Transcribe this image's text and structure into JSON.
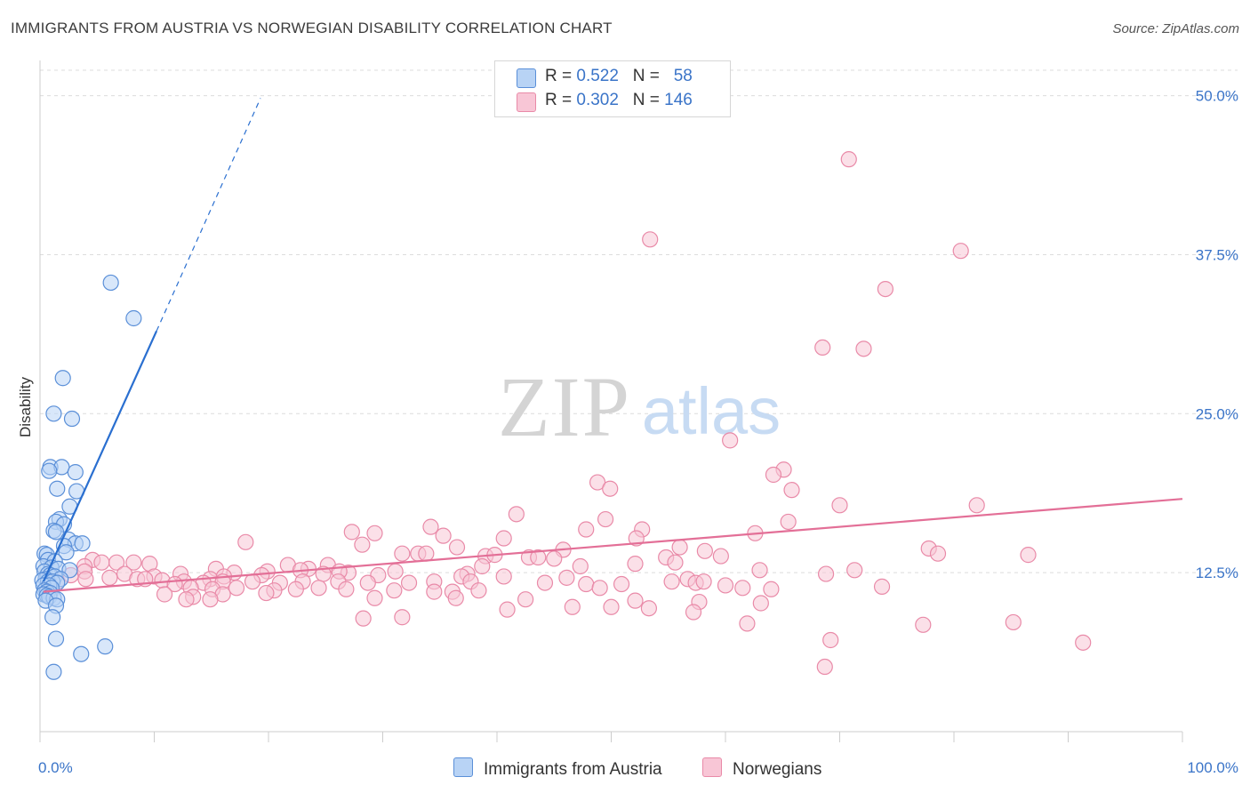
{
  "title": "IMMIGRANTS FROM AUSTRIA VS NORWEGIAN DISABILITY CORRELATION CHART",
  "source": "Source: ZipAtlas.com",
  "watermark": {
    "zip": "ZIP",
    "atlas": "atlas"
  },
  "colors": {
    "blue_fill": "#b8d3f5",
    "blue_stroke": "#5a8fd8",
    "blue_line": "#2a6fd0",
    "pink_fill": "#f8c6d6",
    "pink_stroke": "#e98aa8",
    "pink_line": "#e36f97",
    "tick_label": "#3a74c8",
    "grid": "#dcdcdc"
  },
  "legend_top": {
    "rows": [
      {
        "r_label": "R = ",
        "r_value": "0.522",
        "n_label": "N = ",
        "n_value": "58"
      },
      {
        "r_label": "R = ",
        "r_value": "0.302",
        "n_label": "N = ",
        "n_value": "146"
      }
    ]
  },
  "chart_data": {
    "type": "scatter",
    "title": "IMMIGRANTS FROM AUSTRIA VS NORWEGIAN DISABILITY CORRELATION CHART",
    "xlabel": "",
    "ylabel": "Disability",
    "xlim": [
      0,
      100
    ],
    "ylim": [
      0,
      52
    ],
    "x_tick_labels": [
      "0.0%",
      "100.0%"
    ],
    "y_ticks": [
      12.5,
      25.0,
      37.5,
      50.0
    ],
    "y_tick_labels": [
      "12.5%",
      "25.0%",
      "37.5%",
      "50.0%"
    ],
    "grid": "horizontal dashed",
    "legend_placement": "top-center",
    "series": [
      {
        "name": "Immigrants from Austria",
        "color": "#b8d3f5",
        "trend": {
          "x": [
            0.3,
            10.2
          ],
          "y": [
            11.8,
            31.5
          ],
          "dashed_extension_to": [
            19.3,
            49.8
          ]
        },
        "points": [
          [
            6.2,
            35.3
          ],
          [
            8.2,
            32.5
          ],
          [
            2.0,
            27.8
          ],
          [
            1.2,
            25.0
          ],
          [
            2.8,
            24.6
          ],
          [
            0.9,
            20.8
          ],
          [
            1.9,
            20.8
          ],
          [
            0.8,
            20.5
          ],
          [
            3.1,
            20.4
          ],
          [
            1.5,
            19.1
          ],
          [
            3.2,
            18.9
          ],
          [
            2.6,
            17.7
          ],
          [
            1.7,
            16.7
          ],
          [
            1.4,
            16.5
          ],
          [
            2.1,
            16.3
          ],
          [
            1.2,
            15.8
          ],
          [
            1.4,
            15.7
          ],
          [
            2.5,
            15.1
          ],
          [
            3.1,
            14.8
          ],
          [
            3.7,
            14.8
          ],
          [
            2.1,
            14.6
          ],
          [
            2.3,
            14.1
          ],
          [
            0.4,
            14.0
          ],
          [
            0.6,
            13.9
          ],
          [
            0.7,
            13.5
          ],
          [
            1.3,
            13.4
          ],
          [
            0.3,
            13.0
          ],
          [
            1.0,
            12.9
          ],
          [
            1.6,
            12.8
          ],
          [
            2.6,
            12.7
          ],
          [
            0.4,
            12.6
          ],
          [
            0.7,
            12.4
          ],
          [
            0.9,
            12.3
          ],
          [
            1.3,
            12.2
          ],
          [
            0.5,
            12.0
          ],
          [
            1.8,
            12.0
          ],
          [
            0.2,
            11.9
          ],
          [
            0.7,
            11.8
          ],
          [
            1.1,
            11.8
          ],
          [
            1.5,
            11.7
          ],
          [
            0.3,
            11.5
          ],
          [
            0.8,
            11.5
          ],
          [
            1.0,
            11.3
          ],
          [
            0.4,
            11.1
          ],
          [
            0.6,
            11.0
          ],
          [
            0.9,
            10.9
          ],
          [
            0.3,
            10.8
          ],
          [
            0.6,
            10.7
          ],
          [
            0.8,
            10.6
          ],
          [
            1.2,
            10.5
          ],
          [
            1.5,
            10.4
          ],
          [
            0.5,
            10.3
          ],
          [
            1.4,
            9.9
          ],
          [
            1.1,
            9.0
          ],
          [
            1.4,
            7.3
          ],
          [
            5.7,
            6.7
          ],
          [
            3.6,
            6.1
          ],
          [
            1.2,
            4.7
          ]
        ]
      },
      {
        "name": "Norwegians",
        "color": "#f8c6d6",
        "trend": {
          "x": [
            0.3,
            100
          ],
          "y": [
            11.0,
            18.3
          ]
        },
        "points": [
          [
            70.8,
            45.0
          ],
          [
            53.4,
            38.7
          ],
          [
            80.6,
            37.8
          ],
          [
            74.0,
            34.8
          ],
          [
            68.5,
            30.2
          ],
          [
            72.1,
            30.1
          ],
          [
            60.4,
            22.9
          ],
          [
            65.1,
            20.6
          ],
          [
            64.2,
            20.2
          ],
          [
            48.8,
            19.6
          ],
          [
            49.9,
            19.1
          ],
          [
            65.8,
            19.0
          ],
          [
            70.0,
            17.8
          ],
          [
            82.0,
            17.8
          ],
          [
            41.7,
            17.1
          ],
          [
            49.5,
            16.7
          ],
          [
            65.5,
            16.5
          ],
          [
            34.2,
            16.1
          ],
          [
            27.3,
            15.7
          ],
          [
            29.3,
            15.6
          ],
          [
            47.8,
            15.9
          ],
          [
            52.7,
            15.9
          ],
          [
            62.6,
            15.6
          ],
          [
            35.3,
            15.4
          ],
          [
            40.6,
            15.2
          ],
          [
            52.2,
            15.2
          ],
          [
            18.0,
            14.9
          ],
          [
            28.2,
            14.7
          ],
          [
            36.5,
            14.5
          ],
          [
            56.0,
            14.5
          ],
          [
            45.8,
            14.3
          ],
          [
            58.2,
            14.2
          ],
          [
            77.8,
            14.4
          ],
          [
            31.7,
            14.0
          ],
          [
            33.1,
            14.0
          ],
          [
            33.8,
            14.0
          ],
          [
            39.0,
            13.8
          ],
          [
            39.8,
            13.9
          ],
          [
            42.8,
            13.7
          ],
          [
            59.6,
            13.8
          ],
          [
            78.6,
            14.0
          ],
          [
            86.5,
            13.9
          ],
          [
            43.6,
            13.7
          ],
          [
            45.0,
            13.6
          ],
          [
            54.8,
            13.7
          ],
          [
            4.6,
            13.5
          ],
          [
            5.4,
            13.3
          ],
          [
            6.7,
            13.3
          ],
          [
            8.2,
            13.3
          ],
          [
            9.6,
            13.2
          ],
          [
            3.9,
            13.0
          ],
          [
            21.7,
            13.1
          ],
          [
            25.2,
            13.1
          ],
          [
            38.7,
            13.0
          ],
          [
            47.3,
            13.0
          ],
          [
            52.1,
            13.2
          ],
          [
            55.6,
            13.3
          ],
          [
            23.5,
            12.8
          ],
          [
            22.8,
            12.7
          ],
          [
            15.4,
            12.8
          ],
          [
            17.0,
            12.5
          ],
          [
            27.0,
            12.5
          ],
          [
            26.2,
            12.6
          ],
          [
            19.9,
            12.6
          ],
          [
            31.1,
            12.6
          ],
          [
            37.4,
            12.4
          ],
          [
            63.0,
            12.7
          ],
          [
            71.3,
            12.7
          ],
          [
            2.7,
            12.3
          ],
          [
            3.9,
            12.6
          ],
          [
            7.4,
            12.4
          ],
          [
            10.0,
            12.2
          ],
          [
            12.3,
            12.4
          ],
          [
            6.1,
            12.1
          ],
          [
            8.5,
            12.0
          ],
          [
            9.2,
            12.0
          ],
          [
            14.9,
            12.0
          ],
          [
            16.1,
            12.2
          ],
          [
            19.4,
            12.3
          ],
          [
            24.8,
            12.4
          ],
          [
            29.6,
            12.3
          ],
          [
            36.9,
            12.2
          ],
          [
            40.6,
            12.2
          ],
          [
            46.1,
            12.1
          ],
          [
            56.7,
            12.0
          ],
          [
            68.8,
            12.4
          ],
          [
            1.5,
            11.8
          ],
          [
            4.0,
            12.0
          ],
          [
            10.7,
            11.9
          ],
          [
            12.6,
            11.8
          ],
          [
            14.3,
            11.7
          ],
          [
            16.0,
            11.8
          ],
          [
            18.6,
            11.8
          ],
          [
            21.0,
            11.7
          ],
          [
            23.0,
            11.8
          ],
          [
            26.1,
            11.8
          ],
          [
            28.7,
            11.7
          ],
          [
            32.3,
            11.7
          ],
          [
            34.5,
            11.8
          ],
          [
            37.7,
            11.8
          ],
          [
            44.2,
            11.7
          ],
          [
            47.8,
            11.6
          ],
          [
            50.9,
            11.6
          ],
          [
            55.3,
            11.8
          ],
          [
            57.4,
            11.7
          ],
          [
            58.1,
            11.8
          ],
          [
            60.0,
            11.5
          ],
          [
            11.8,
            11.6
          ],
          [
            13.2,
            11.3
          ],
          [
            15.1,
            11.2
          ],
          [
            17.2,
            11.3
          ],
          [
            20.5,
            11.1
          ],
          [
            22.4,
            11.2
          ],
          [
            24.4,
            11.3
          ],
          [
            26.8,
            11.2
          ],
          [
            31.0,
            11.1
          ],
          [
            34.5,
            11.0
          ],
          [
            36.1,
            11.0
          ],
          [
            38.4,
            11.1
          ],
          [
            49.0,
            11.3
          ],
          [
            61.5,
            11.3
          ],
          [
            64.0,
            11.2
          ],
          [
            73.7,
            11.4
          ],
          [
            10.9,
            10.8
          ],
          [
            13.4,
            10.6
          ],
          [
            16.0,
            10.8
          ],
          [
            19.8,
            10.9
          ],
          [
            29.3,
            10.5
          ],
          [
            36.4,
            10.5
          ],
          [
            42.5,
            10.4
          ],
          [
            52.1,
            10.3
          ],
          [
            57.7,
            10.2
          ],
          [
            63.1,
            10.1
          ],
          [
            12.8,
            10.4
          ],
          [
            14.9,
            10.4
          ],
          [
            46.6,
            9.8
          ],
          [
            50.0,
            9.8
          ],
          [
            57.2,
            9.4
          ],
          [
            53.3,
            9.7
          ],
          [
            40.9,
            9.6
          ],
          [
            31.7,
            9.0
          ],
          [
            28.3,
            8.9
          ],
          [
            61.9,
            8.5
          ],
          [
            77.3,
            8.4
          ],
          [
            85.2,
            8.6
          ],
          [
            69.2,
            7.2
          ],
          [
            68.7,
            5.1
          ],
          [
            91.3,
            7.0
          ]
        ]
      }
    ]
  },
  "legend_bottom": {
    "items": [
      "Immigrants from Austria",
      "Norwegians"
    ]
  }
}
